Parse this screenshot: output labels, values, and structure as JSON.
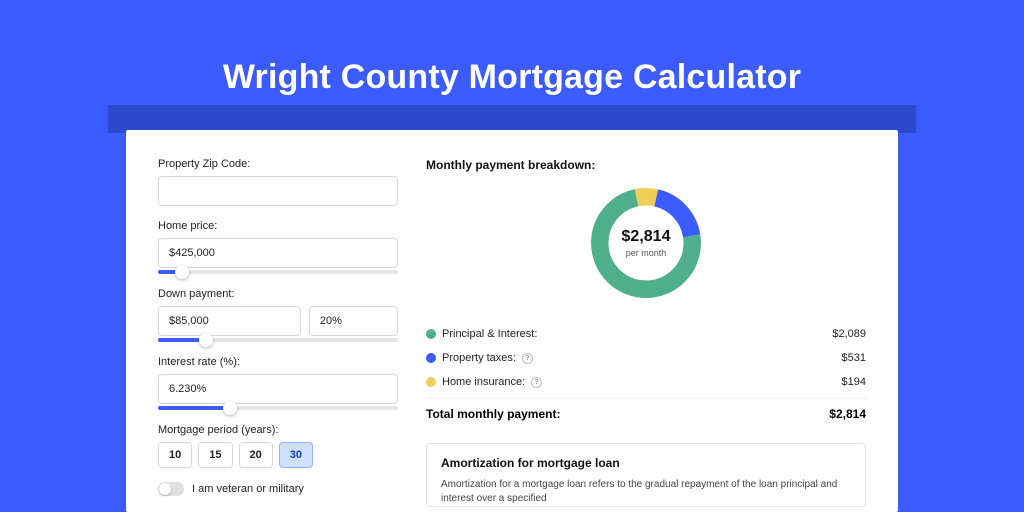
{
  "colors": {
    "hero_bg": "#3b5bfd",
    "shadow_band": "#2c49cc",
    "card_bg": "#ffffff",
    "text": "#222222",
    "input_border": "#d8d8d8",
    "slider_track": "#e6e6e6",
    "slider_fill": "#3b5bfd",
    "period_active_bg": "#cfe0ff",
    "period_active_border": "#8fb3ff",
    "period_active_text": "#1a3db8",
    "toggle_track": "#e0e0e0"
  },
  "hero": {
    "title": "Wright County Mortgage Calculator"
  },
  "inputs": {
    "zip": {
      "label": "Property Zip Code:",
      "value": ""
    },
    "price": {
      "label": "Home price:",
      "value": "$425,000",
      "slider_percent": 10
    },
    "down": {
      "label": "Down payment:",
      "value": "$85,000",
      "percent": "20%",
      "slider_percent": 20
    },
    "rate": {
      "label": "Interest rate (%):",
      "value": "6.230%",
      "slider_percent": 30
    },
    "period": {
      "label": "Mortgage period (years):",
      "options": [
        "10",
        "15",
        "20",
        "30"
      ],
      "active": "30"
    },
    "veteran": {
      "label": "I am veteran or military",
      "on": false
    }
  },
  "breakdown": {
    "title": "Monthly payment breakdown:",
    "center_amount": "$2,814",
    "center_sub": "per month",
    "series": {
      "principal_interest": {
        "label": "Principal & Interest:",
        "value": "$2,089",
        "amount": 2089,
        "color": "#4fae8c"
      },
      "property_taxes": {
        "label": "Property taxes:",
        "value": "$531",
        "amount": 531,
        "color": "#3b5bfd",
        "info": true
      },
      "home_insurance": {
        "label": "Home insurance:",
        "value": "$194",
        "amount": 194,
        "color": "#f0cd55",
        "info": true
      }
    },
    "total": {
      "label": "Total monthly payment:",
      "value": "$2,814",
      "amount": 2814
    }
  },
  "amortization": {
    "title": "Amortization for mortgage loan",
    "text": "Amortization for a mortgage loan refers to the gradual repayment of the loan principal and interest over a specified"
  }
}
